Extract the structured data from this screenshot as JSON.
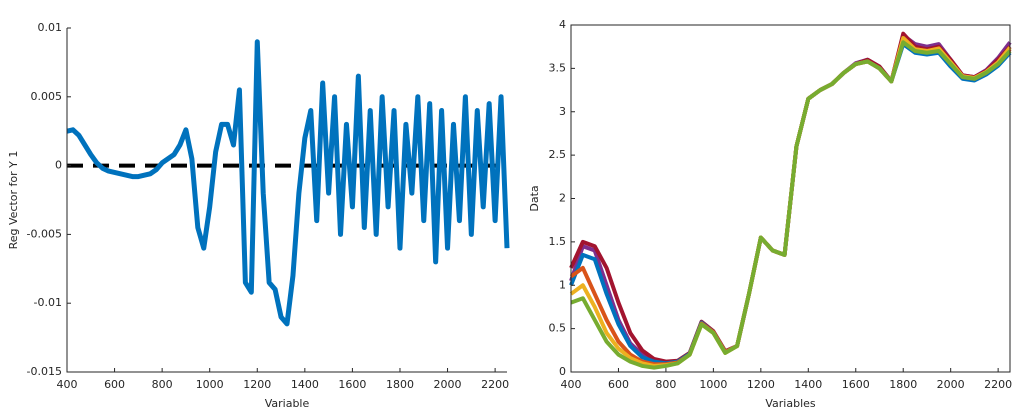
{
  "chart_data": [
    {
      "type": "line",
      "y_label": "Reg Vector for Y 1",
      "x_label": "Variable",
      "xlim": [
        400,
        2250
      ],
      "xticks": [
        400,
        600,
        800,
        1000,
        1200,
        1400,
        1600,
        1800,
        2000,
        2200
      ],
      "ylim": [
        -0.015,
        0.01
      ],
      "yticks": [
        -0.015,
        -0.01,
        -0.005,
        0,
        0.005,
        0.01
      ],
      "reference_line": 0,
      "x": [
        400,
        425,
        450,
        475,
        500,
        525,
        550,
        575,
        600,
        625,
        650,
        675,
        700,
        725,
        750,
        775,
        800,
        825,
        850,
        875,
        900,
        925,
        950,
        975,
        1000,
        1025,
        1050,
        1075,
        1100,
        1125,
        1150,
        1175,
        1200,
        1225,
        1250,
        1275,
        1300,
        1325,
        1350,
        1375,
        1400,
        1425,
        1450,
        1475,
        1500,
        1525,
        1550,
        1575,
        1600,
        1625,
        1650,
        1675,
        1700,
        1725,
        1750,
        1775,
        1800,
        1825,
        1850,
        1875,
        1900,
        1925,
        1950,
        1975,
        2000,
        2025,
        2050,
        2075,
        2100,
        2125,
        2150,
        2175,
        2200,
        2225,
        2250
      ],
      "series": [
        {
          "color": "#0072bd",
          "values": [
            0.0025,
            0.0026,
            0.0022,
            0.0015,
            0.0008,
            0.0002,
            -0.0002,
            -0.0004,
            -0.0005,
            -0.0006,
            -0.0007,
            -0.0008,
            -0.0008,
            -0.0007,
            -0.0006,
            -0.0003,
            0.0002,
            0.0005,
            0.0008,
            0.0015,
            0.0026,
            0.0005,
            -0.0045,
            -0.006,
            -0.003,
            0.001,
            0.003,
            0.003,
            0.0015,
            0.0055,
            -0.0085,
            -0.0092,
            0.009,
            -0.002,
            -0.0085,
            -0.009,
            -0.011,
            -0.0115,
            -0.008,
            -0.002,
            0.002,
            0.004,
            -0.004,
            0.006,
            -0.002,
            0.005,
            -0.005,
            0.003,
            -0.003,
            0.0065,
            -0.0045,
            0.004,
            -0.005,
            0.005,
            -0.003,
            0.004,
            -0.006,
            0.003,
            -0.002,
            0.005,
            -0.004,
            0.0045,
            -0.007,
            0.004,
            -0.006,
            0.003,
            -0.004,
            0.005,
            -0.005,
            0.004,
            -0.003,
            0.0045,
            -0.004,
            0.005,
            -0.006
          ]
        }
      ]
    },
    {
      "type": "line",
      "y_label": "Data",
      "x_label": "Variables",
      "xlim": [
        400,
        2250
      ],
      "xticks": [
        400,
        600,
        800,
        1000,
        1200,
        1400,
        1600,
        1800,
        2000,
        2200
      ],
      "ylim": [
        0,
        4
      ],
      "yticks": [
        0,
        0.5,
        1,
        1.5,
        2,
        2.5,
        3,
        3.5,
        4
      ],
      "x": [
        400,
        450,
        500,
        550,
        600,
        650,
        700,
        750,
        800,
        850,
        900,
        950,
        1000,
        1050,
        1100,
        1150,
        1200,
        1250,
        1300,
        1350,
        1400,
        1450,
        1500,
        1550,
        1600,
        1650,
        1700,
        1750,
        1800,
        1850,
        1900,
        1950,
        2000,
        2050,
        2100,
        2150,
        2200,
        2250
      ],
      "series": [
        {
          "color": "#7e2f8e",
          "values": [
            1.05,
            1.45,
            1.4,
            1.0,
            0.6,
            0.33,
            0.2,
            0.13,
            0.11,
            0.12,
            0.21,
            0.57,
            0.46,
            0.23,
            0.3,
            0.9,
            1.55,
            1.4,
            1.35,
            2.6,
            3.15,
            3.25,
            3.32,
            3.45,
            3.56,
            3.6,
            3.52,
            3.35,
            3.88,
            3.78,
            3.75,
            3.78,
            3.6,
            3.42,
            3.4,
            3.48,
            3.62,
            3.8
          ]
        },
        {
          "color": "#a2142f",
          "values": [
            1.2,
            1.5,
            1.45,
            1.2,
            0.8,
            0.45,
            0.25,
            0.15,
            0.12,
            0.13,
            0.22,
            0.58,
            0.47,
            0.24,
            0.3,
            0.9,
            1.55,
            1.4,
            1.35,
            2.6,
            3.15,
            3.25,
            3.32,
            3.45,
            3.55,
            3.6,
            3.52,
            3.35,
            3.9,
            3.75,
            3.72,
            3.75,
            3.6,
            3.42,
            3.4,
            3.47,
            3.6,
            3.75
          ]
        },
        {
          "color": "#0072bd",
          "values": [
            1.0,
            1.35,
            1.3,
            0.9,
            0.55,
            0.3,
            0.17,
            0.12,
            0.1,
            0.12,
            0.21,
            0.57,
            0.46,
            0.23,
            0.3,
            0.9,
            1.55,
            1.4,
            1.35,
            2.6,
            3.15,
            3.25,
            3.32,
            3.45,
            3.55,
            3.58,
            3.5,
            3.35,
            3.78,
            3.68,
            3.66,
            3.68,
            3.52,
            3.38,
            3.36,
            3.43,
            3.53,
            3.68
          ]
        },
        {
          "color": "#d95319",
          "values": [
            1.1,
            1.2,
            0.9,
            0.6,
            0.35,
            0.2,
            0.12,
            0.09,
            0.09,
            0.11,
            0.2,
            0.56,
            0.46,
            0.23,
            0.3,
            0.9,
            1.55,
            1.4,
            1.35,
            2.6,
            3.15,
            3.25,
            3.32,
            3.45,
            3.55,
            3.58,
            3.5,
            3.35,
            3.82,
            3.72,
            3.7,
            3.72,
            3.56,
            3.4,
            3.38,
            3.45,
            3.56,
            3.72
          ]
        },
        {
          "color": "#edb120",
          "values": [
            0.9,
            1.0,
            0.75,
            0.45,
            0.27,
            0.16,
            0.1,
            0.07,
            0.08,
            0.1,
            0.2,
            0.55,
            0.45,
            0.22,
            0.3,
            0.9,
            1.55,
            1.4,
            1.35,
            2.6,
            3.15,
            3.25,
            3.32,
            3.45,
            3.55,
            3.58,
            3.5,
            3.35,
            3.85,
            3.72,
            3.7,
            3.73,
            3.57,
            3.41,
            3.39,
            3.46,
            3.57,
            3.74
          ]
        },
        {
          "color": "#77ac30",
          "values": [
            0.8,
            0.85,
            0.6,
            0.35,
            0.2,
            0.12,
            0.07,
            0.05,
            0.07,
            0.1,
            0.2,
            0.55,
            0.45,
            0.22,
            0.3,
            0.9,
            1.55,
            1.4,
            1.35,
            2.6,
            3.15,
            3.25,
            3.32,
            3.45,
            3.55,
            3.58,
            3.5,
            3.35,
            3.8,
            3.7,
            3.68,
            3.7,
            3.55,
            3.4,
            3.38,
            3.45,
            3.55,
            3.7
          ]
        }
      ]
    }
  ]
}
